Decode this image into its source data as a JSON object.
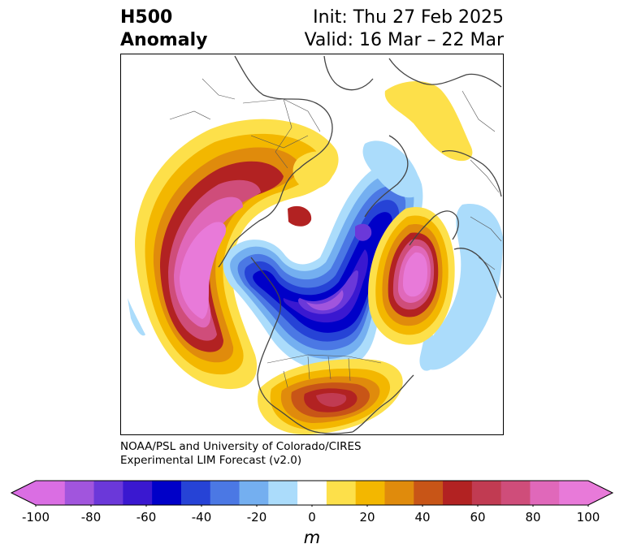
{
  "title": {
    "left_line1": "H500",
    "left_line2": "Anomaly",
    "right_line1": "Init: Thu 27 Feb 2025",
    "right_line2": "Valid: 16 Mar – 22 Mar"
  },
  "credit": {
    "line1": "NOAA/PSL and University of Colorado/CIRES",
    "line2": "Experimental LIM Forecast (v2.0)"
  },
  "colorbar": {
    "unit": "m",
    "ticks": [
      "-100",
      "-80",
      "-60",
      "-40",
      "-20",
      "0",
      "20",
      "40",
      "60",
      "80",
      "100"
    ],
    "levels": [
      -100,
      -90,
      -80,
      -70,
      -60,
      -50,
      -40,
      -30,
      -20,
      -10,
      10,
      20,
      30,
      40,
      50,
      60,
      70,
      80,
      90,
      100
    ],
    "colors": [
      "#da6ee3",
      "#a155dd",
      "#6b38d9",
      "#3a18d0",
      "#0000c8",
      "#2643d6",
      "#4b78e4",
      "#74aff0",
      "#abdcfb",
      "#ffffff",
      "#fde04a",
      "#f3b700",
      "#e08b0c",
      "#c85517",
      "#b22222",
      "#c13b52",
      "#cf4d7a",
      "#e068ba",
      "#e87ad9"
    ],
    "extend": "both"
  }
}
